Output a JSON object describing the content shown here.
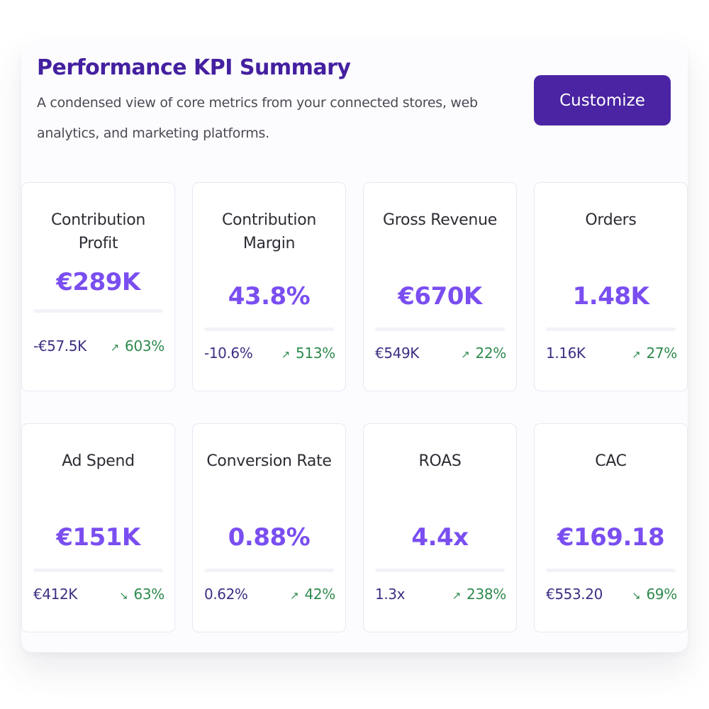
{
  "header": {
    "title": "Performance KPI Summary",
    "subtitle": "A condensed view of core metrics from your connected stores, web analytics, and marketing platforms.",
    "customize_label": "Customize"
  },
  "colors": {
    "title": "#4420a0",
    "button": "#4a24a2",
    "value": "#7a4ef0",
    "positive": "#2e8a4e"
  },
  "kpis": [
    {
      "label": "Contribution Profit",
      "value": "€289K",
      "previous": "-€57.5K",
      "change": "603%",
      "arrow": "↗",
      "arrow_icon": "arrow-up-right-icon"
    },
    {
      "label": "Contribution Margin",
      "value": "43.8%",
      "previous": "-10.6%",
      "change": "513%",
      "arrow": "↗",
      "arrow_icon": "arrow-up-right-icon"
    },
    {
      "label": "Gross Revenue",
      "value": "€670K",
      "previous": "€549K",
      "change": "22%",
      "arrow": "↗",
      "arrow_icon": "arrow-up-right-icon"
    },
    {
      "label": "Orders",
      "value": "1.48K",
      "previous": "1.16K",
      "change": "27%",
      "arrow": "↗",
      "arrow_icon": "arrow-up-right-icon"
    },
    {
      "label": "Ad Spend",
      "value": "€151K",
      "previous": "€412K",
      "change": "63%",
      "arrow": "↘",
      "arrow_icon": "arrow-down-right-icon"
    },
    {
      "label": "Conversion Rate",
      "value": "0.88%",
      "previous": "0.62%",
      "change": "42%",
      "arrow": "↗",
      "arrow_icon": "arrow-up-right-icon"
    },
    {
      "label": "ROAS",
      "value": "4.4x",
      "previous": "1.3x",
      "change": "238%",
      "arrow": "↗",
      "arrow_icon": "arrow-up-right-icon"
    },
    {
      "label": "CAC",
      "value": "€169.18",
      "previous": "€553.20",
      "change": "69%",
      "arrow": "↘",
      "arrow_icon": "arrow-down-right-icon"
    }
  ]
}
